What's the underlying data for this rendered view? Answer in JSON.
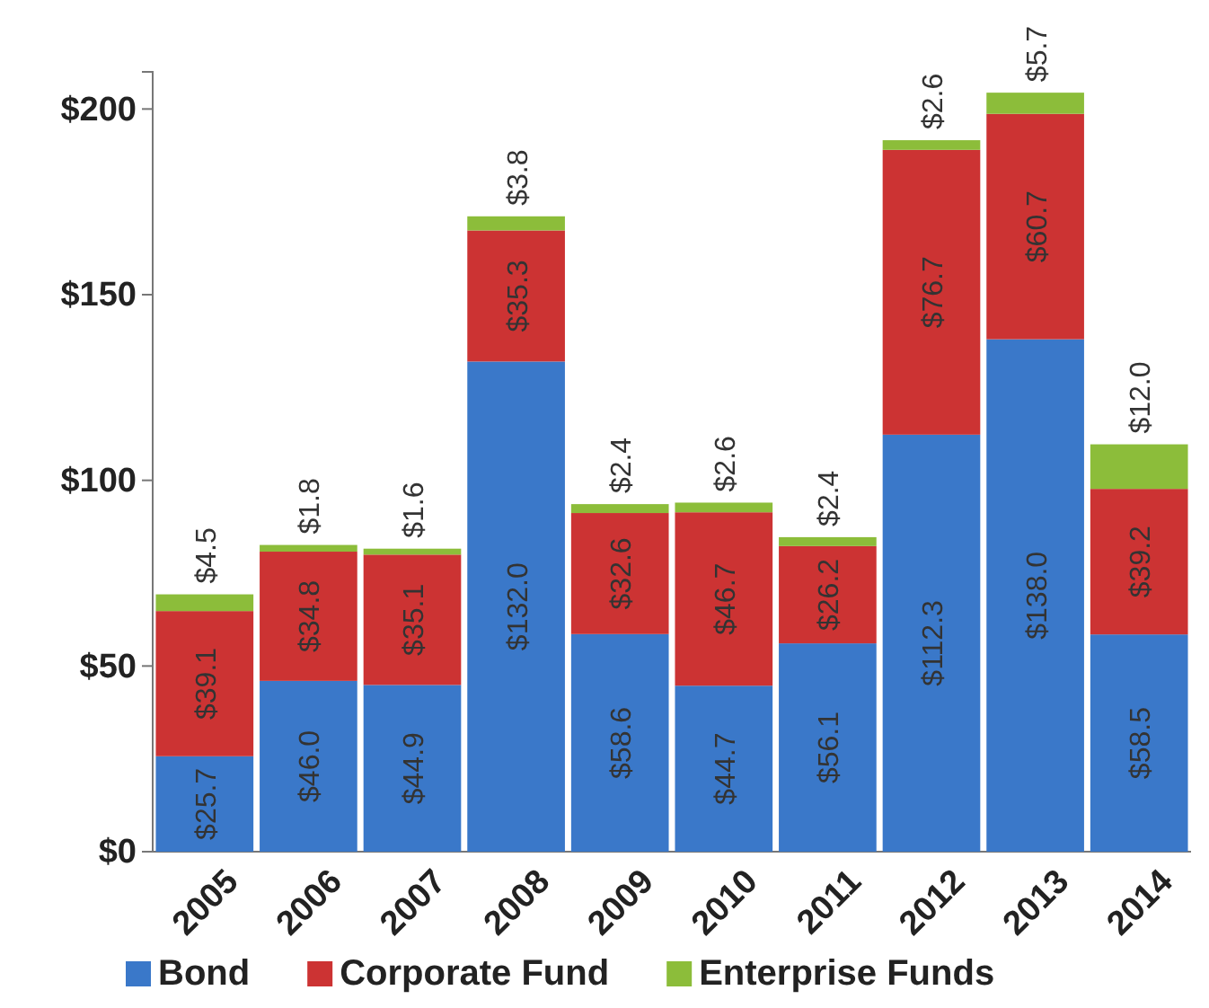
{
  "chart_data": {
    "type": "bar",
    "stacked": true,
    "categories": [
      "2005",
      "2006",
      "2007",
      "2008",
      "2009",
      "2010",
      "2011",
      "2012",
      "2013",
      "2014"
    ],
    "series": [
      {
        "name": "Bond",
        "color": "#3a78c9",
        "values": [
          25.7,
          46.0,
          44.9,
          132.0,
          58.6,
          44.7,
          56.1,
          112.3,
          138.0,
          58.5
        ],
        "value_labels": [
          "$25.7",
          "$46.0",
          "$44.9",
          "$132.0",
          "$58.6",
          "$44.7",
          "$56.1",
          "$112.3",
          "$138.0",
          "$58.5"
        ]
      },
      {
        "name": "Corporate Fund",
        "color": "#cc3333",
        "values": [
          39.1,
          34.8,
          35.1,
          35.3,
          32.6,
          46.7,
          26.2,
          76.7,
          60.7,
          39.2
        ],
        "value_labels": [
          "$39.1",
          "$34.8",
          "$35.1",
          "$35.3",
          "$32.6",
          "$46.7",
          "$26.2",
          "$76.7",
          "$60.7",
          "$39.2"
        ]
      },
      {
        "name": "Enterprise Funds",
        "color": "#8cbd3a",
        "values": [
          4.5,
          1.8,
          1.6,
          3.8,
          2.4,
          2.6,
          2.4,
          2.6,
          5.7,
          12.0
        ],
        "value_labels": [
          "$4.5",
          "$1.8",
          "$1.6",
          "$3.8",
          "$2.4",
          "$2.6",
          "$2.4",
          "$2.6",
          "$5.7",
          "$12.0"
        ]
      }
    ],
    "ylim": [
      0,
      210
    ],
    "yticks": [
      {
        "value": 0,
        "label": "$0"
      },
      {
        "value": 50,
        "label": "$50"
      },
      {
        "value": 100,
        "label": "$100"
      },
      {
        "value": 150,
        "label": "$150"
      },
      {
        "value": 200,
        "label": "$200"
      }
    ],
    "legend": "bottom"
  }
}
